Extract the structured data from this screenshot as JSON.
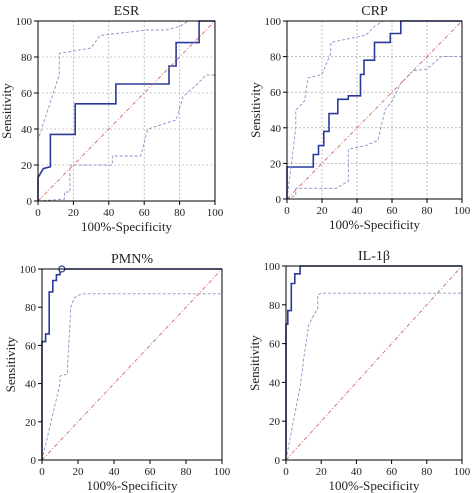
{
  "chart_data": [
    {
      "type": "line",
      "title": "ESR",
      "xlabel": "100%-Specificity",
      "ylabel": "Sensitivity",
      "xlim": [
        0,
        100
      ],
      "ylim": [
        0,
        100
      ],
      "xticks": [
        0,
        20,
        40,
        60,
        80,
        100
      ],
      "yticks": [
        0,
        20,
        40,
        60,
        80,
        100
      ],
      "grid": true,
      "series": [
        {
          "role": "roc",
          "x": [
            0,
            0,
            3,
            3,
            7,
            7,
            21,
            21,
            44,
            44,
            74,
            74,
            78,
            78,
            91,
            91,
            100
          ],
          "y": [
            0,
            13,
            18,
            18,
            19,
            37,
            37,
            54,
            54,
            65,
            65,
            75,
            75,
            88,
            88,
            100,
            100
          ]
        },
        {
          "role": "ci-upper",
          "x": [
            0,
            0,
            8,
            12,
            12,
            30,
            35,
            62,
            72,
            80,
            85,
            92,
            92,
            100
          ],
          "y": [
            0,
            34,
            58,
            70,
            82,
            85,
            92,
            95,
            95,
            97,
            100,
            100,
            100,
            100
          ]
        },
        {
          "role": "ci-lower",
          "x": [
            0,
            15,
            15,
            18,
            18,
            42,
            42,
            58,
            62,
            78,
            82,
            90,
            95,
            100
          ],
          "y": [
            0,
            1,
            5,
            5,
            20,
            20,
            25,
            25,
            40,
            45,
            58,
            65,
            70,
            70
          ]
        },
        {
          "role": "reference",
          "x": [
            0,
            100
          ],
          "y": [
            0,
            100
          ]
        }
      ]
    },
    {
      "type": "line",
      "title": "CRP",
      "xlabel": "100%-Specificity",
      "ylabel": "Sensitivity",
      "xlim": [
        0,
        100
      ],
      "ylim": [
        0,
        100
      ],
      "xticks": [
        0,
        20,
        40,
        60,
        80,
        100
      ],
      "yticks": [
        0,
        20,
        40,
        60,
        80,
        100
      ],
      "grid": true,
      "series": [
        {
          "role": "roc",
          "x": [
            0,
            0,
            13,
            15,
            15,
            18,
            18,
            21,
            21,
            24,
            24,
            29,
            29,
            35,
            35,
            42,
            42,
            44,
            44,
            50,
            50,
            59,
            59,
            65,
            65,
            100
          ],
          "y": [
            0,
            18,
            18,
            18,
            25,
            25,
            30,
            30,
            38,
            38,
            48,
            48,
            56,
            56,
            58,
            58,
            70,
            70,
            78,
            78,
            88,
            88,
            93,
            93,
            100,
            100
          ]
        },
        {
          "role": "ci-upper",
          "x": [
            0,
            5,
            5,
            10,
            12,
            20,
            25,
            25,
            35,
            45,
            50,
            55,
            58,
            65,
            100
          ],
          "y": [
            0,
            40,
            50,
            55,
            68,
            70,
            82,
            88,
            90,
            92,
            97,
            100,
            100,
            100,
            100
          ]
        },
        {
          "role": "ci-lower",
          "x": [
            0,
            5,
            5,
            28,
            35,
            35,
            45,
            52,
            56,
            60,
            65,
            72,
            80,
            88,
            100
          ],
          "y": [
            0,
            2,
            6,
            6,
            10,
            28,
            30,
            33,
            50,
            55,
            65,
            72,
            73,
            80,
            80
          ]
        },
        {
          "role": "reference",
          "x": [
            0,
            100
          ],
          "y": [
            0,
            100
          ]
        }
      ]
    },
    {
      "type": "line",
      "title": "PMN%",
      "xlabel": "100%-Specificity",
      "ylabel": "Sensitivity",
      "xlim": [
        0,
        100
      ],
      "ylim": [
        0,
        100
      ],
      "xticks": [
        0,
        20,
        40,
        60,
        80,
        100
      ],
      "yticks": [
        0,
        20,
        40,
        60,
        80,
        100
      ],
      "grid": false,
      "series": [
        {
          "role": "roc",
          "x": [
            0,
            0,
            2,
            2,
            4,
            4,
            6,
            6,
            8,
            8,
            10,
            10,
            100
          ],
          "y": [
            0,
            62,
            62,
            66,
            66,
            88,
            88,
            94,
            94,
            97,
            97,
            100,
            100
          ]
        },
        {
          "role": "ci-upper",
          "x": [
            0,
            0,
            100
          ],
          "y": [
            0,
            100,
            100
          ]
        },
        {
          "role": "ci-lower",
          "x": [
            0,
            10,
            10,
            14,
            16,
            18,
            22,
            100
          ],
          "y": [
            0,
            40,
            44,
            45,
            80,
            85,
            87,
            87
          ]
        },
        {
          "role": "reference",
          "x": [
            0,
            100
          ],
          "y": [
            0,
            100
          ]
        }
      ],
      "marker": {
        "x": 11,
        "y": 100
      }
    },
    {
      "type": "line",
      "title": "IL-1β",
      "xlabel": "100%-Specificity",
      "ylabel": "Sensitivity",
      "xlim": [
        0,
        100
      ],
      "ylim": [
        0,
        100
      ],
      "xticks": [
        0,
        20,
        40,
        60,
        80,
        100
      ],
      "yticks": [
        0,
        20,
        40,
        60,
        80,
        100
      ],
      "grid": false,
      "series": [
        {
          "role": "roc",
          "x": [
            0,
            0,
            1,
            1,
            3,
            3,
            5,
            5,
            8,
            8,
            100
          ],
          "y": [
            0,
            70,
            70,
            77,
            77,
            91,
            91,
            96,
            96,
            100,
            100
          ]
        },
        {
          "role": "ci-upper",
          "x": [
            0,
            0,
            100
          ],
          "y": [
            0,
            100,
            100
          ]
        },
        {
          "role": "ci-lower",
          "x": [
            0,
            8,
            9,
            10,
            13,
            16,
            18,
            18,
            20,
            100
          ],
          "y": [
            0,
            38,
            44,
            52,
            70,
            75,
            78,
            85,
            86,
            86
          ]
        },
        {
          "role": "reference",
          "x": [
            0,
            100
          ],
          "y": [
            0,
            100
          ]
        }
      ]
    }
  ]
}
